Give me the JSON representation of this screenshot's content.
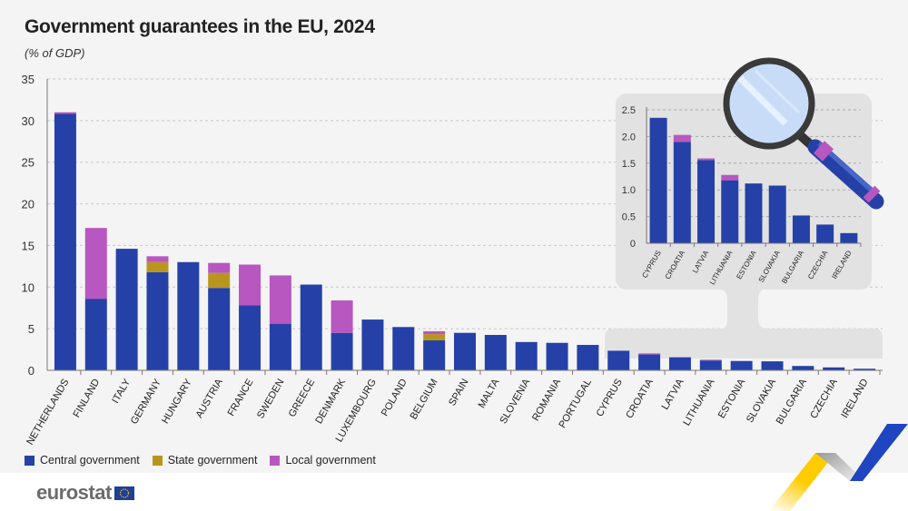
{
  "title": "Government guarantees in the EU, 2024",
  "subtitle": "(% of GDP)",
  "brand": "eurostat",
  "colors": {
    "central": "#2541a8",
    "state": "#b8961e",
    "local": "#b857bf",
    "background": "#f4f4f4",
    "inset_background": "#e2e2e2"
  },
  "chart_data": {
    "type": "bar",
    "stacked": true,
    "title": "Government guarantees in the EU, 2024",
    "ylabel": "(% of GDP)",
    "ylim": [
      0,
      35
    ],
    "yticks": [
      0,
      5,
      10,
      15,
      20,
      25,
      30,
      35
    ],
    "grid": true,
    "legend_position": "bottom-left",
    "categories": [
      "NETHERLANDS",
      "FINLAND",
      "ITALY",
      "GERMANY",
      "HUNGARY",
      "AUSTRIA",
      "FRANCE",
      "SWEDEN",
      "GREECE",
      "DENMARK",
      "LUXEMBOURG",
      "POLAND",
      "BELGIUM",
      "SPAIN",
      "MALTA",
      "SLOVENIA",
      "ROMANIA",
      "PORTUGAL",
      "CYPRUS",
      "CROATIA",
      "LATVIA",
      "LITHUANIA",
      "ESTONIA",
      "SLOVAKIA",
      "BULGARIA",
      "CZECHIA",
      "IRELAND"
    ],
    "series": [
      {
        "name": "Central government",
        "values": [
          30.8,
          8.6,
          14.6,
          11.8,
          13.0,
          9.9,
          7.8,
          5.6,
          10.3,
          4.5,
          6.1,
          5.2,
          3.6,
          4.5,
          4.25,
          3.4,
          3.3,
          3.05,
          2.35,
          1.9,
          1.56,
          1.18,
          1.12,
          1.08,
          0.52,
          0.35,
          0.19
        ]
      },
      {
        "name": "State government",
        "values": [
          0,
          0,
          0,
          1.2,
          0,
          1.8,
          0,
          0,
          0,
          0,
          0,
          0,
          0.75,
          0,
          0,
          0,
          0,
          0,
          0,
          0,
          0,
          0,
          0,
          0,
          0,
          0,
          0
        ]
      },
      {
        "name": "Local government",
        "values": [
          0.2,
          8.5,
          0,
          0.7,
          0,
          1.2,
          4.9,
          5.8,
          0,
          3.9,
          0,
          0,
          0.35,
          0,
          0,
          0,
          0,
          0,
          0,
          0.13,
          0.03,
          0.1,
          0,
          0,
          0,
          0,
          0
        ]
      }
    ],
    "inset": {
      "ylim": [
        0,
        2.5
      ],
      "yticks": [
        "0",
        "0.5",
        "1.0",
        "1.5",
        "2.0",
        "2.5"
      ],
      "categories": [
        "CYPRUS",
        "CROATIA",
        "LATVIA",
        "LITHUANIA",
        "ESTONIA",
        "SLOVAKIA",
        "BULGARIA",
        "CZECHIA",
        "IRELAND"
      ]
    }
  }
}
